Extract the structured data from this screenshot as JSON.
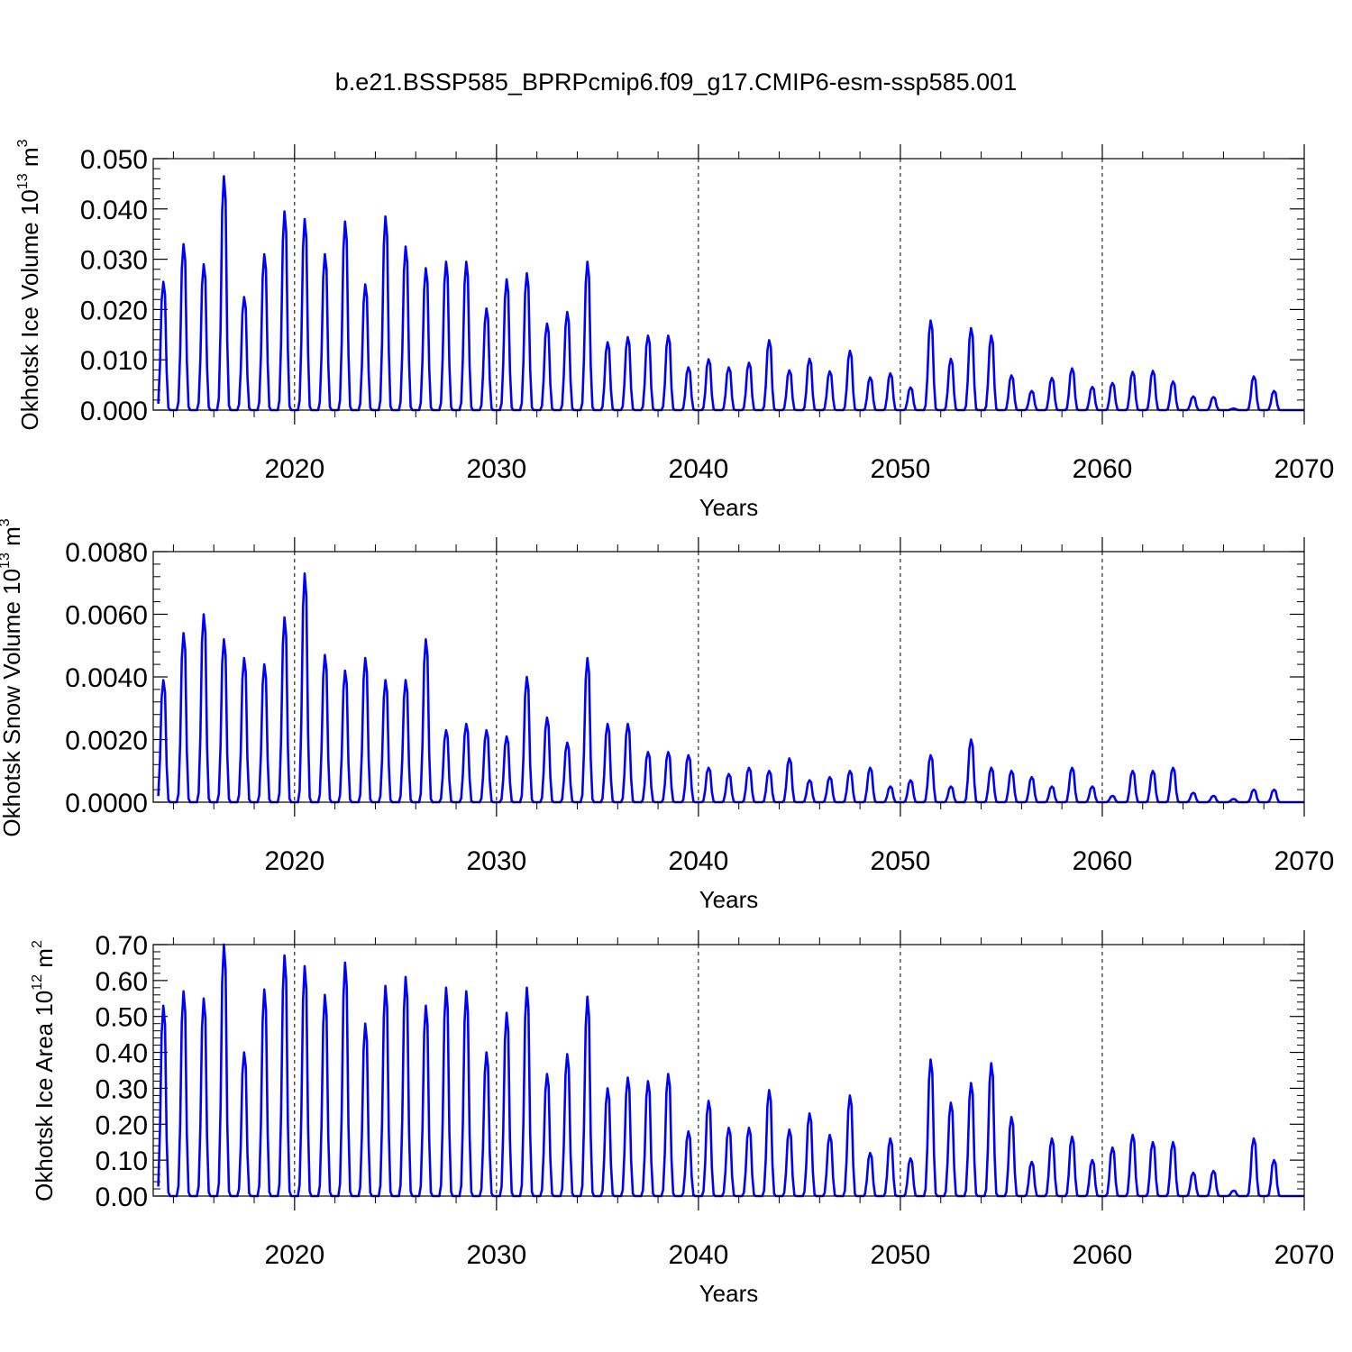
{
  "figure_title": "b.e21.BSSP585_BPRPcmip6.f09_g17.CMIP6-esm-ssp585.001",
  "colors": {
    "line": "#0000ff",
    "axes": "#000000",
    "grid": "#000000"
  },
  "chart_data": [
    {
      "type": "line",
      "ylabel": "Okhotsk Ice Volume 10",
      "ylabel_exp": "13",
      "ylabel_unit": "m",
      "ylabel_unit_exp": "3",
      "xlabel": "Years",
      "xlim": [
        2013,
        2070
      ],
      "ylim": [
        0,
        0.05
      ],
      "yticks": [
        0,
        0.01,
        0.02,
        0.03,
        0.04,
        0.05
      ],
      "yticklabels": [
        "0.000",
        "0.010",
        "0.020",
        "0.030",
        "0.040",
        "0.050"
      ],
      "xticks": [
        2020,
        2030,
        2040,
        2050,
        2060,
        2070
      ],
      "xticklabels": [
        "2020",
        "2030",
        "2040",
        "2050",
        "2060",
        "2070"
      ],
      "grid_x": [
        2020,
        2030,
        2040,
        2050,
        2060
      ],
      "series": [
        {
          "name": "Okhotsk Ice Volume",
          "years": [
            2013,
            2014,
            2015,
            2016,
            2017,
            2018,
            2019,
            2020,
            2021,
            2022,
            2023,
            2024,
            2025,
            2026,
            2027,
            2028,
            2029,
            2030,
            2031,
            2032,
            2033,
            2034,
            2035,
            2036,
            2037,
            2038,
            2039,
            2040,
            2041,
            2042,
            2043,
            2044,
            2045,
            2046,
            2047,
            2048,
            2049,
            2050,
            2051,
            2052,
            2053,
            2054,
            2055,
            2056,
            2057,
            2058,
            2059,
            2060,
            2061,
            2062,
            2063,
            2064,
            2065,
            2066,
            2067,
            2068,
            2069
          ],
          "peaks": [
            0.0255,
            0.033,
            0.029,
            0.0465,
            0.0225,
            0.031,
            0.0395,
            0.038,
            0.031,
            0.0375,
            0.025,
            0.0385,
            0.0325,
            0.0282,
            0.0295,
            0.0295,
            0.0202,
            0.026,
            0.0272,
            0.0172,
            0.0195,
            0.0295,
            0.0135,
            0.0145,
            0.0148,
            0.0148,
            0.0085,
            0.0101,
            0.0085,
            0.0094,
            0.0139,
            0.0079,
            0.0102,
            0.0077,
            0.0118,
            0.0065,
            0.0073,
            0.0045,
            0.0178,
            0.0102,
            0.0163,
            0.0148,
            0.0069,
            0.0038,
            0.0064,
            0.0083,
            0.0046,
            0.0054,
            0.0076,
            0.0078,
            0.0057,
            0.0027,
            0.0026,
            0.0003,
            0.0067,
            0.0038,
            0.0
          ]
        }
      ]
    },
    {
      "type": "line",
      "ylabel": "Okhotsk Snow Volume 10",
      "ylabel_exp": "13",
      "ylabel_unit": "m",
      "ylabel_unit_exp": "3",
      "xlabel": "Years",
      "xlim": [
        2013,
        2070
      ],
      "ylim": [
        0,
        0.008
      ],
      "yticks": [
        0,
        0.002,
        0.004,
        0.006,
        0.008
      ],
      "yticklabels": [
        "0.0000",
        "0.0020",
        "0.0040",
        "0.0060",
        "0.0080"
      ],
      "xticks": [
        2020,
        2030,
        2040,
        2050,
        2060,
        2070
      ],
      "xticklabels": [
        "2020",
        "2030",
        "2040",
        "2050",
        "2060",
        "2070"
      ],
      "grid_x": [
        2020,
        2030,
        2040,
        2050,
        2060
      ],
      "series": [
        {
          "name": "Okhotsk Snow Volume",
          "years": [
            2013,
            2014,
            2015,
            2016,
            2017,
            2018,
            2019,
            2020,
            2021,
            2022,
            2023,
            2024,
            2025,
            2026,
            2027,
            2028,
            2029,
            2030,
            2031,
            2032,
            2033,
            2034,
            2035,
            2036,
            2037,
            2038,
            2039,
            2040,
            2041,
            2042,
            2043,
            2044,
            2045,
            2046,
            2047,
            2048,
            2049,
            2050,
            2051,
            2052,
            2053,
            2054,
            2055,
            2056,
            2057,
            2058,
            2059,
            2060,
            2061,
            2062,
            2063,
            2064,
            2065,
            2066,
            2067,
            2068,
            2069
          ],
          "peaks": [
            0.0039,
            0.0054,
            0.006,
            0.0052,
            0.0046,
            0.0044,
            0.0059,
            0.0073,
            0.0047,
            0.0042,
            0.0046,
            0.0039,
            0.0039,
            0.0052,
            0.0023,
            0.0025,
            0.0023,
            0.0021,
            0.004,
            0.0027,
            0.0019,
            0.0046,
            0.0025,
            0.0025,
            0.0016,
            0.0016,
            0.0015,
            0.0011,
            0.0009,
            0.0011,
            0.001,
            0.0014,
            0.0007,
            0.0008,
            0.001,
            0.0011,
            0.0005,
            0.0007,
            0.0015,
            0.0005,
            0.002,
            0.0011,
            0.001,
            0.0008,
            0.0005,
            0.0011,
            0.0005,
            0.0002,
            0.001,
            0.001,
            0.0011,
            0.0003,
            0.0002,
            0.0001,
            0.0004,
            0.0004,
            0.0
          ]
        }
      ]
    },
    {
      "type": "line",
      "ylabel": "Okhotsk Ice Area 10",
      "ylabel_exp": "12",
      "ylabel_unit": "m",
      "ylabel_unit_exp": "2",
      "xlabel": "Years",
      "xlim": [
        2013,
        2070
      ],
      "ylim": [
        0,
        0.7
      ],
      "yticks": [
        0,
        0.1,
        0.2,
        0.3,
        0.4,
        0.5,
        0.6,
        0.7
      ],
      "yticklabels": [
        "0.00",
        "0.10",
        "0.20",
        "0.30",
        "0.40",
        "0.50",
        "0.60",
        "0.70"
      ],
      "xticks": [
        2020,
        2030,
        2040,
        2050,
        2060,
        2070
      ],
      "xticklabels": [
        "2020",
        "2030",
        "2040",
        "2050",
        "2060",
        "2070"
      ],
      "grid_x": [
        2020,
        2030,
        2040,
        2050,
        2060
      ],
      "series": [
        {
          "name": "Okhotsk Ice Area",
          "years": [
            2013,
            2014,
            2015,
            2016,
            2017,
            2018,
            2019,
            2020,
            2021,
            2022,
            2023,
            2024,
            2025,
            2026,
            2027,
            2028,
            2029,
            2030,
            2031,
            2032,
            2033,
            2034,
            2035,
            2036,
            2037,
            2038,
            2039,
            2040,
            2041,
            2042,
            2043,
            2044,
            2045,
            2046,
            2047,
            2048,
            2049,
            2050,
            2051,
            2052,
            2053,
            2054,
            2055,
            2056,
            2057,
            2058,
            2059,
            2060,
            2061,
            2062,
            2063,
            2064,
            2065,
            2066,
            2067,
            2068,
            2069
          ],
          "peaks": [
            0.53,
            0.57,
            0.55,
            0.7,
            0.4,
            0.575,
            0.67,
            0.64,
            0.56,
            0.65,
            0.48,
            0.585,
            0.61,
            0.53,
            0.58,
            0.57,
            0.4,
            0.51,
            0.58,
            0.34,
            0.395,
            0.555,
            0.3,
            0.33,
            0.32,
            0.34,
            0.18,
            0.265,
            0.19,
            0.19,
            0.295,
            0.185,
            0.23,
            0.17,
            0.28,
            0.12,
            0.16,
            0.105,
            0.38,
            0.26,
            0.315,
            0.37,
            0.22,
            0.095,
            0.16,
            0.165,
            0.1,
            0.135,
            0.17,
            0.15,
            0.15,
            0.065,
            0.07,
            0.015,
            0.16,
            0.1,
            0.0
          ]
        }
      ]
    }
  ]
}
